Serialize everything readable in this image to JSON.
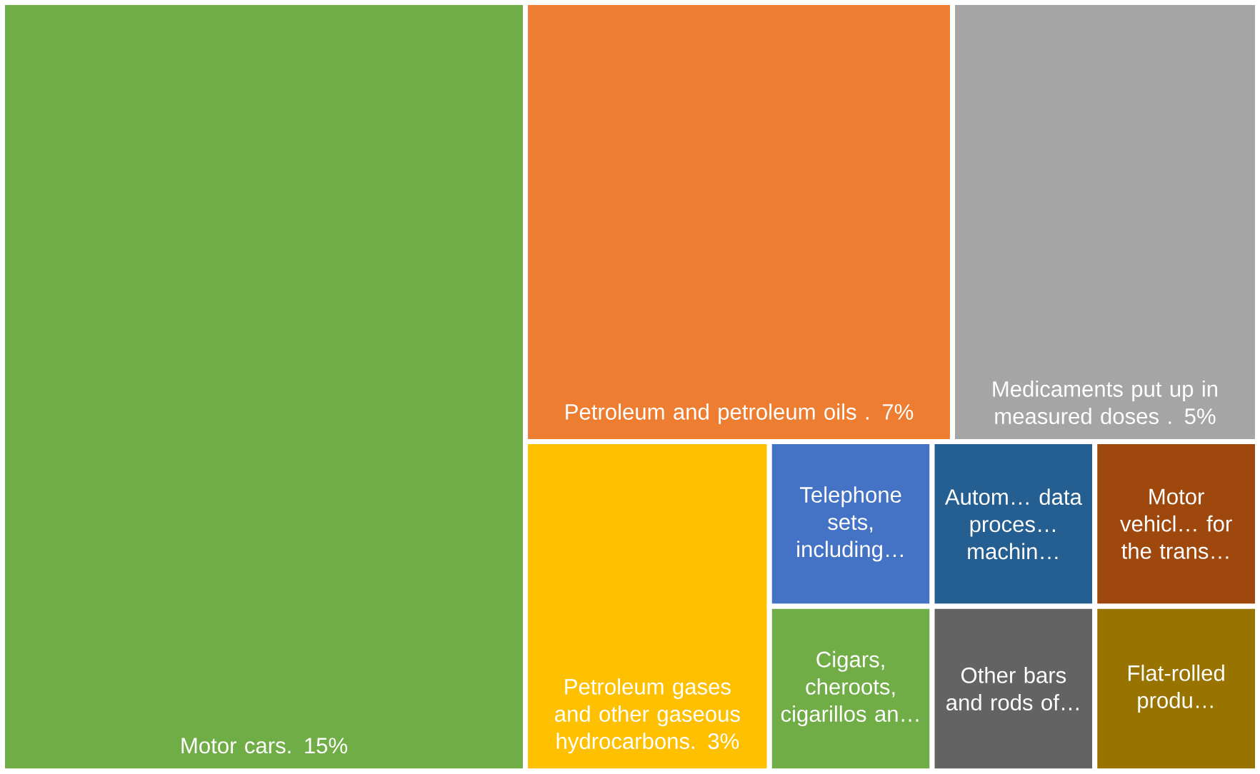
{
  "chart_data": {
    "type": "other",
    "categories": [
      "Motor cars.",
      "Petroleum and petroleum oils .",
      "Medicaments put up in measured doses .",
      "Petroleum gases and other gaseous hydrocarbons.",
      "Telephone sets, including…",
      "Cigars, cheroots, cigarillos an…",
      "Autom… data proces… machin…",
      "Motor vehicl… for the trans…",
      "Other bars and rods of…",
      "Flat-rolled produ…"
    ],
    "values": [
      15,
      7,
      5,
      3,
      null,
      null,
      null,
      null,
      null,
      null
    ],
    "value_labels": [
      "15%",
      "7%",
      "5%",
      "3%",
      null,
      null,
      null,
      null,
      null,
      null
    ],
    "colors": [
      "#70ad47",
      "#ed7d31",
      "#a5a5a5",
      "#ffc000",
      "#4472c4",
      "#70ad47",
      "#255e91",
      "#9e480e",
      "#636363",
      "#997300"
    ]
  }
}
